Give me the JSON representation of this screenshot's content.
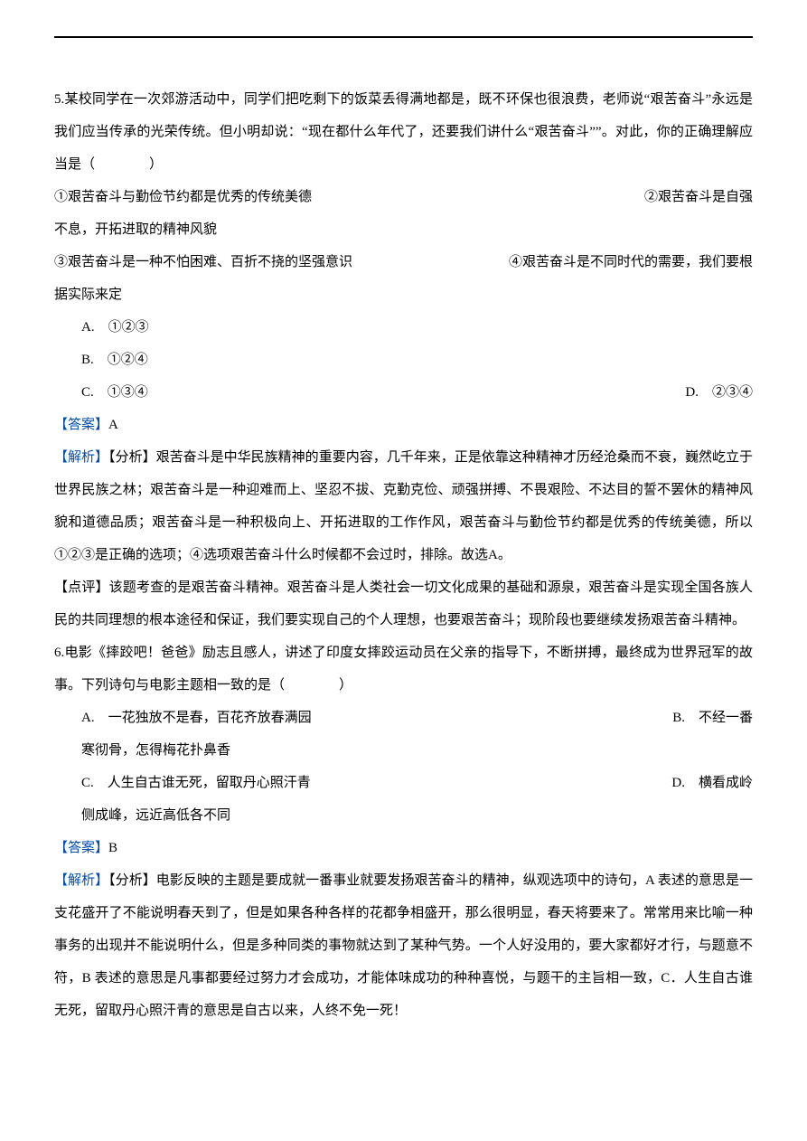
{
  "colors": {
    "text": "#000000",
    "accent": "#004fb0",
    "background": "#ffffff",
    "rule": "#000000"
  },
  "typography": {
    "body_fontsize_pt": 11,
    "line_height": 2.4,
    "font_family": "SimSun"
  },
  "q5": {
    "stem_line1": "5.某校同学在一次郊游活动中，同学们把吃剩下的饭菜丢得满地都是，既不环保也很浪费，老师说“艰苦奋斗”永远是我们应当传承的光荣传统。但小明却说：“现在都什么年代了，还要我们讲什么“艰苦奋斗””。对此，你的正确理解应当是（　　　　）",
    "stmt1_left": "①艰苦奋斗与勤俭节约都是优秀的传统美德",
    "stmt1_right": "②艰苦奋斗是自强",
    "stmt1_cont": "不息，开拓进取的精神风貌",
    "stmt2_left": "③艰苦奋斗是一种不怕困难、百折不挠的坚强意识",
    "stmt2_right": "④艰苦奋斗是不同时代的需要，我们要根",
    "stmt2_cont": "据实际来定",
    "options": {
      "A": "A.　①②③",
      "B": "B.　①②④",
      "C": "C.　①③④",
      "D": "D.　②③④"
    },
    "answer_label": "【答案】",
    "answer_value": "A",
    "analysis_label": "【解析】",
    "analysis_body": "【分析】艰苦奋斗是中华民族精神的重要内容，几千年来，正是依靠这种精神才历经沧桑而不衰，巍然屹立于世界民族之林；艰苦奋斗是一种迎难而上、坚忍不拔、克勤克俭、顽强拼搏、不畏艰险、不达目的誓不罢休的精神风貌和道德品质；艰苦奋斗是一种积极向上、开拓进取的工作作风，艰苦奋斗与勤俭节约都是优秀的传统美德，所以①②③是正确的选项；④选项艰苦奋斗什么时候都不会过时，排除。故选A。",
    "comment": "【点评】该题考查的是艰苦奋斗精神。艰苦奋斗是人类社会一切文化成果的基础和源泉，艰苦奋斗是实现全国各族人民的共同理想的根本途径和保证，我们要实现自己的个人理想，也要艰苦奋斗；现阶段也要继续发扬艰苦奋斗精神。"
  },
  "q6": {
    "stem": "6.电影《摔跤吧！爸爸》励志且感人，讲述了印度女摔跤运动员在父亲的指导下，不断拼搏，最终成为世界冠军的故事。下列诗句与电影主题相一致的是（　　　　）",
    "options": {
      "A_left": "A.　一花独放不是春，百花齐放春满园",
      "B_right": "B.　不经一番",
      "B_cont": "寒彻骨，怎得梅花扑鼻香",
      "C_left": "C.　人生自古谁无死，留取丹心照汗青",
      "D_right": "D.　横看成岭",
      "D_cont": "侧成峰，远近高低各不同"
    },
    "answer_label": "【答案】",
    "answer_value": "B",
    "analysis_label": "【解析】",
    "analysis_body": "【分析】电影反映的主题是要成就一番事业就要发扬艰苦奋斗的精神，纵观选项中的诗句，A 表述的意思是一支花盛开了不能说明春天到了，但是如果各种各样的花都争相盛开，那么很明显，春天将要来了。常常用来比喻一种事务的出现并不能说明什么，但是多种同类的事物就达到了某种气势。一个人好没用的，要大家都好才行，与题意不符，B 表述的意思是凡事都要经过努力才会成功，才能体味成功的种种喜悦，与题干的主旨相一致，C．人生自古谁无死，留取丹心照汗青的意思是自古以来，人终不免一死！"
  }
}
